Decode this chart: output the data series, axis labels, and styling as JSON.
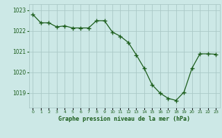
{
  "x": [
    0,
    1,
    2,
    3,
    4,
    5,
    6,
    7,
    8,
    9,
    10,
    11,
    12,
    13,
    14,
    15,
    16,
    17,
    18,
    19,
    20,
    21,
    22,
    23
  ],
  "y": [
    1022.8,
    1022.4,
    1022.4,
    1022.2,
    1022.25,
    1022.15,
    1022.15,
    1022.15,
    1022.5,
    1022.5,
    1021.95,
    1021.75,
    1021.45,
    1020.85,
    1020.2,
    1019.4,
    1019.0,
    1018.75,
    1018.65,
    1019.05,
    1020.2,
    1020.9,
    1020.9,
    1020.88
  ],
  "line_color": "#1a5c1a",
  "marker_color": "#1a5c1a",
  "bg_color": "#cce8e6",
  "grid_color": "#aac8c6",
  "text_color": "#1a5c1a",
  "xlabel": "Graphe pression niveau de la mer (hPa)",
  "ylim_min": 1018.3,
  "ylim_max": 1023.3,
  "yticks": [
    1019,
    1020,
    1021,
    1022,
    1023
  ]
}
